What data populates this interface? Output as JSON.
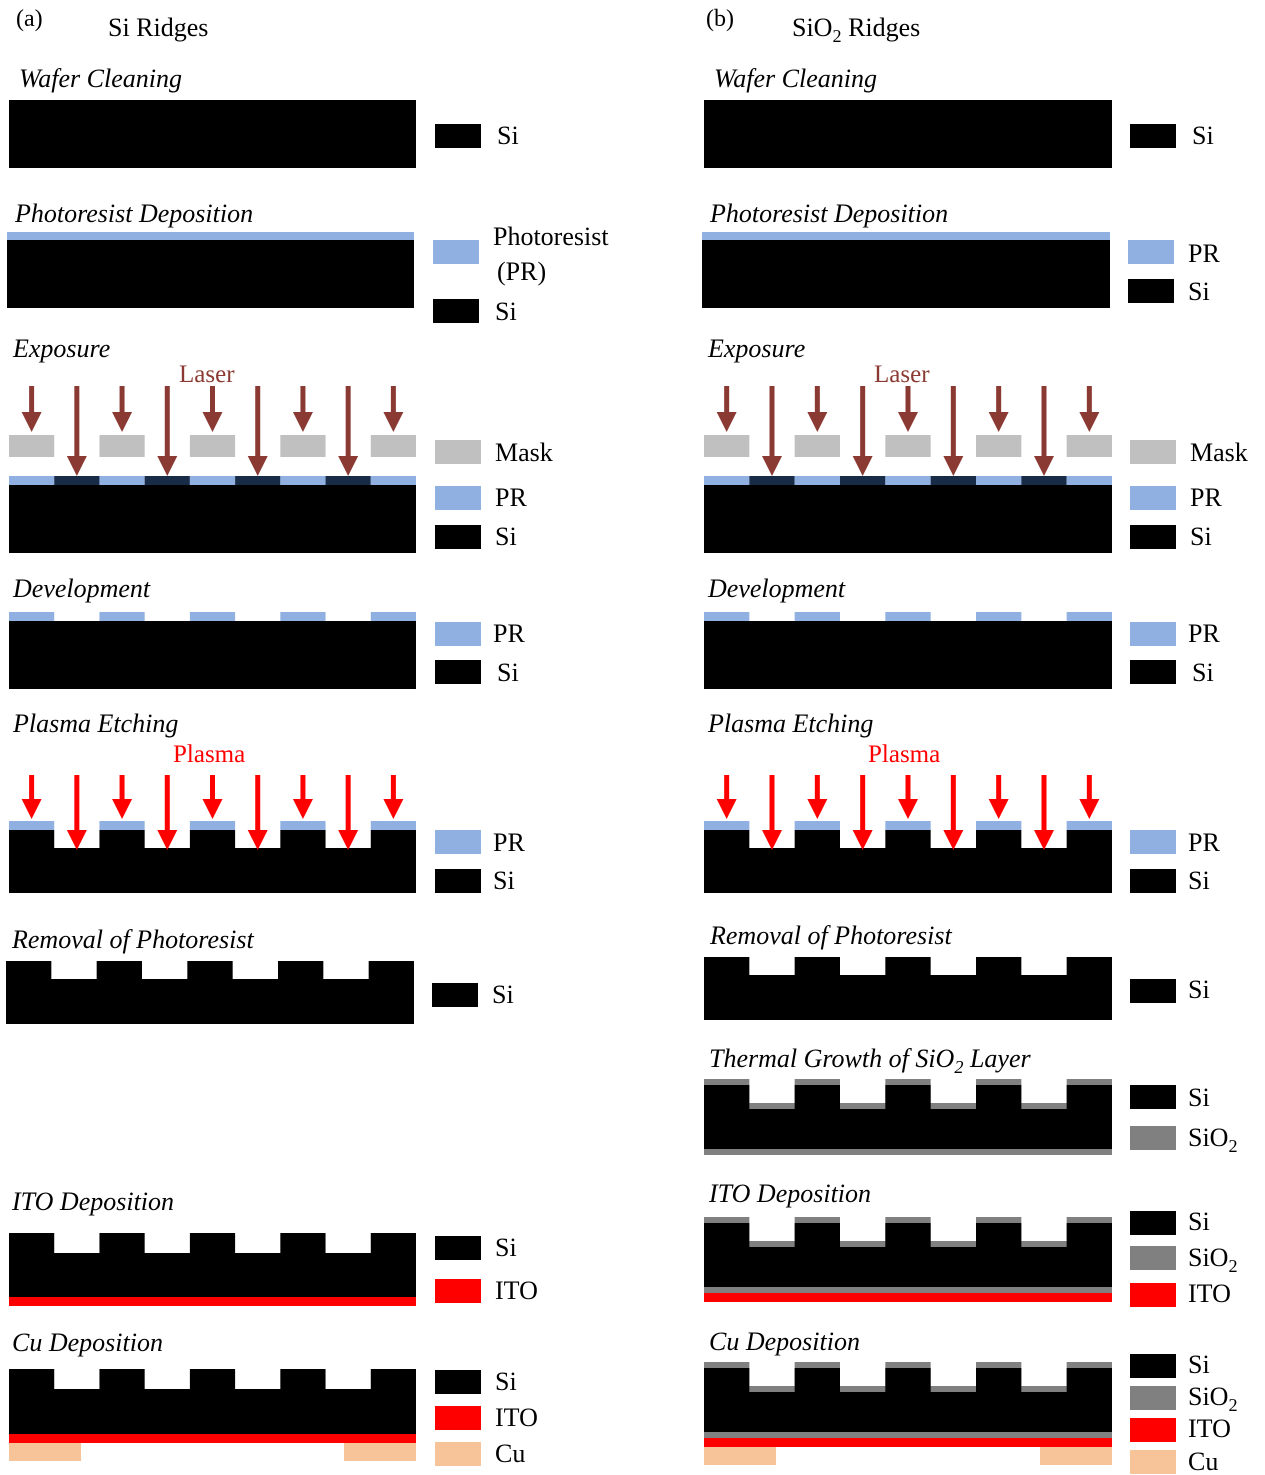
{
  "colors": {
    "si": "#000000",
    "pr": "#8fb0e0",
    "pr_exposed": "#182c48",
    "mask": "#c0c0c0",
    "laser": "#8b3a33",
    "plasma": "#ff0000",
    "sio2": "#808080",
    "ito": "#ff0000",
    "cu": "#f7c49a"
  },
  "panels": {
    "a": {
      "label": "(a)",
      "title": "Si Ridges"
    },
    "b": {
      "label": "(b)",
      "title_main": "SiO",
      "title_sub": "2",
      "title_rest": " Ridges"
    }
  },
  "annotations": {
    "laser": "Laser",
    "plasma": "Plasma"
  },
  "steps": {
    "wafer_cleaning": "Wafer Cleaning",
    "photoresist_deposition": "Photoresist Deposition",
    "exposure": "Exposure",
    "development": "Development",
    "plasma_etching": "Plasma Etching",
    "removal_of_photoresist": "Removal of Photoresist",
    "thermal_growth_main": "Thermal Growth of SiO",
    "thermal_growth_sub": "2",
    "thermal_growth_rest": " Layer",
    "ito_deposition": "ITO Deposition",
    "cu_deposition": "Cu Deposition"
  },
  "legend": {
    "si": "Si",
    "photoresist_line1": "Photoresist",
    "photoresist_line2": "(PR)",
    "pr": "PR",
    "mask": "Mask",
    "sio2_main": "SiO",
    "sio2_sub": "2",
    "ito": "ITO",
    "cu": "Cu"
  }
}
